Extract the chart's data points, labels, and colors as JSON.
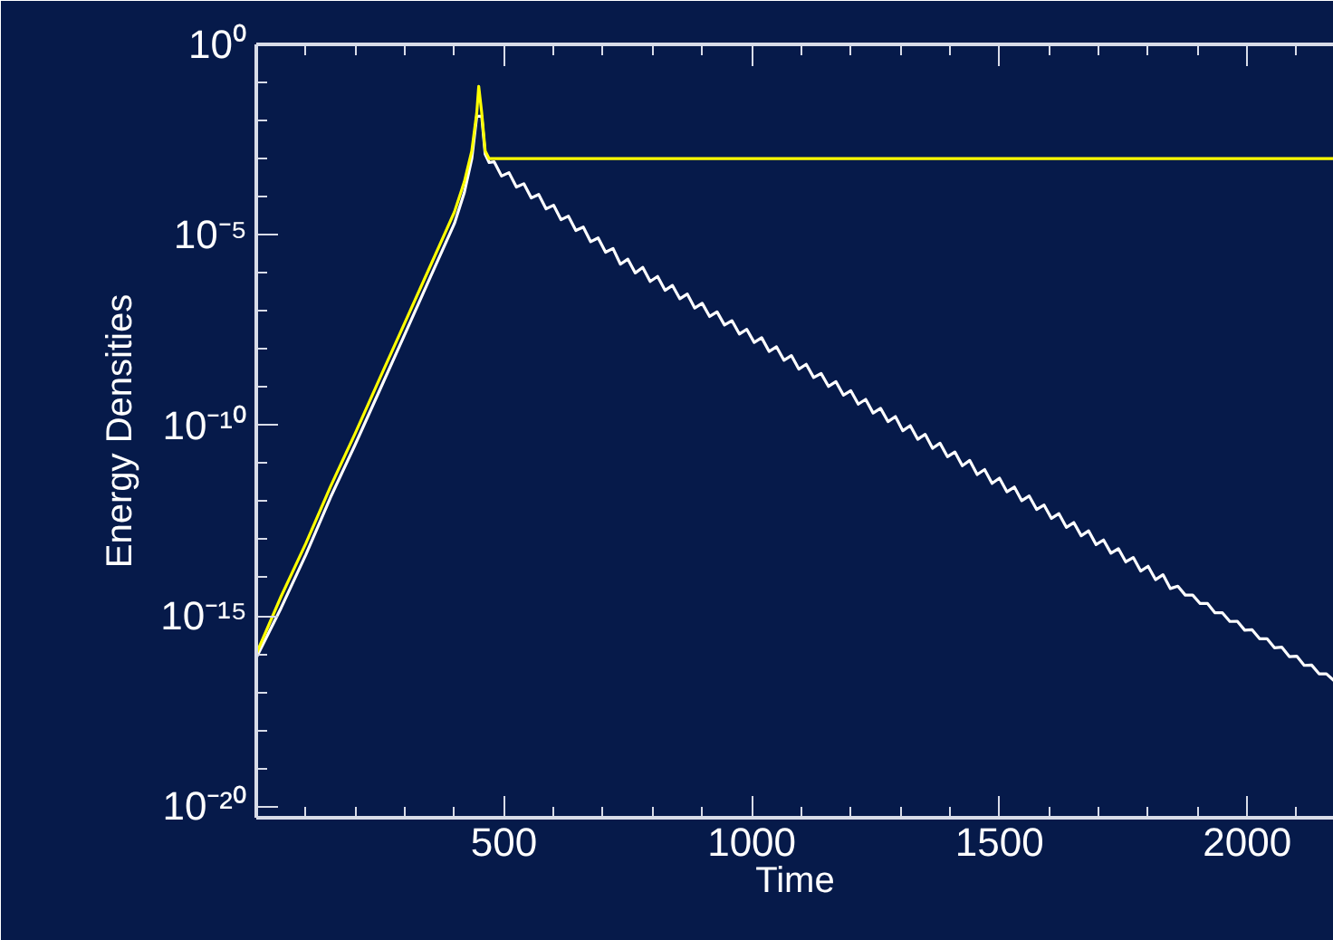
{
  "chart_data": {
    "type": "line",
    "xlabel": "Time",
    "ylabel": "Energy Densities",
    "log": true,
    "grid": false,
    "xlim": [
      0,
      2175
    ],
    "xticks": [
      500,
      1000,
      1500,
      2000
    ],
    "ylim": [
      5e-21,
      1
    ],
    "yticks": [
      {
        "value": 1,
        "label": "10⁰"
      },
      {
        "value": 1e-05,
        "label": "10⁻⁵"
      },
      {
        "value": 1e-10,
        "label": "10⁻¹⁰"
      },
      {
        "value": 1e-15,
        "label": "10⁻¹⁵"
      },
      {
        "value": 1e-20,
        "label": "10⁻²⁰"
      }
    ],
    "series": [
      {
        "color": "#ffffff",
        "x": [
          0,
          50,
          100,
          150,
          200,
          250,
          300,
          350,
          400,
          420,
          435,
          445,
          455,
          462,
          470,
          480,
          495,
          510,
          525,
          540,
          555,
          570,
          585,
          600,
          615,
          630,
          645,
          660,
          675,
          690,
          705,
          720,
          735,
          750,
          765,
          780,
          795,
          810,
          825,
          840,
          855,
          870,
          885,
          900,
          915,
          930,
          945,
          960,
          975,
          990,
          1005,
          1020,
          1035,
          1050,
          1065,
          1080,
          1095,
          1110,
          1125,
          1140,
          1155,
          1170,
          1185,
          1200,
          1215,
          1230,
          1245,
          1260,
          1275,
          1290,
          1305,
          1320,
          1335,
          1350,
          1365,
          1380,
          1395,
          1410,
          1425,
          1440,
          1455,
          1470,
          1485,
          1500,
          1515,
          1530,
          1545,
          1560,
          1575,
          1590,
          1605,
          1620,
          1635,
          1650,
          1665,
          1680,
          1695,
          1710,
          1725,
          1740,
          1755,
          1770,
          1785,
          1800,
          1815,
          1830,
          1845,
          1860,
          1875,
          1890,
          1905,
          1920,
          1935,
          1950,
          1965,
          1980,
          1995,
          2010,
          2025,
          2040,
          2055,
          2070,
          2085,
          2100,
          2115,
          2130,
          2145,
          2160,
          2175
        ],
        "values": [
          7.9e-17,
          1.6e-15,
          4e-14,
          1.3e-12,
          3.2e-11,
          8.9e-10,
          2.5e-08,
          7.1e-07,
          2e-05,
          0.00013,
          0.001,
          0.013,
          0.013,
          0.0013,
          0.00079,
          0.00083,
          0.00035,
          0.00043,
          0.00018,
          0.00022,
          9.3e-05,
          0.000115,
          4.8e-05,
          6e-05,
          2.5e-05,
          3.1e-05,
          1.3e-05,
          1.6e-05,
          6.6e-06,
          8.3e-06,
          3.5e-06,
          4.4e-06,
          1.7e-06,
          2.3e-06,
          1e-06,
          1.4e-06,
          6e-07,
          8.1e-07,
          3.5e-07,
          4.7e-07,
          2.1e-07,
          2.8e-07,
          1.2e-07,
          1.6e-07,
          7.2e-08,
          9.5e-08,
          4.3e-08,
          5.6e-08,
          2.5e-08,
          3.3e-08,
          1.5e-08,
          2e-08,
          8.7e-09,
          1.15e-08,
          5.1e-09,
          6.8e-09,
          3e-09,
          4e-09,
          1.8e-09,
          2.3e-09,
          1.05e-09,
          1.4e-09,
          6.2e-10,
          8.1e-10,
          3.6e-10,
          4.8e-10,
          2.1e-10,
          2.8e-10,
          1.25e-10,
          1.7e-10,
          7.2e-11,
          9.8e-11,
          4.3e-11,
          5.8e-11,
          2.5e-11,
          3.4e-11,
          1.5e-11,
          2e-11,
          8.7e-12,
          1.2e-11,
          5.1e-12,
          6.9e-12,
          3e-12,
          4.1e-12,
          1.8e-12,
          2.4e-12,
          1.05e-12,
          1.4e-12,
          6.2e-13,
          8.1e-13,
          3.6e-13,
          4.8e-13,
          2.1e-13,
          2.8e-13,
          1.26e-13,
          1.7e-13,
          7.4e-14,
          9.8e-14,
          4.4e-14,
          5.8e-14,
          2.6e-14,
          3.4e-14,
          1.5e-14,
          2e-14,
          8.9e-15,
          1.2e-14,
          5.2e-15,
          6e-15,
          3.5e-15,
          3.5e-15,
          2.1e-15,
          2.1e-15,
          1.2e-15,
          1.2e-15,
          7.1e-16,
          7.2e-16,
          4.2e-16,
          4.3e-16,
          2.5e-16,
          2.5e-16,
          1.45e-16,
          1.5e-16,
          8.5e-17,
          8.7e-17,
          5e-17,
          5.1e-17,
          3e-17,
          3e-17,
          2e-17
        ]
      },
      {
        "color": "#ffff00",
        "x": [
          0,
          50,
          100,
          150,
          200,
          250,
          300,
          350,
          400,
          420,
          435,
          445,
          449,
          455,
          462,
          470,
          2175
        ],
        "values": [
          1e-16,
          3.2e-15,
          7.9e-14,
          2.5e-12,
          6.3e-11,
          1.8e-09,
          5e-08,
          1.4e-06,
          4e-05,
          0.00025,
          0.0016,
          0.016,
          0.079,
          0.016,
          0.0016,
          0.001,
          0.001
        ]
      }
    ]
  }
}
